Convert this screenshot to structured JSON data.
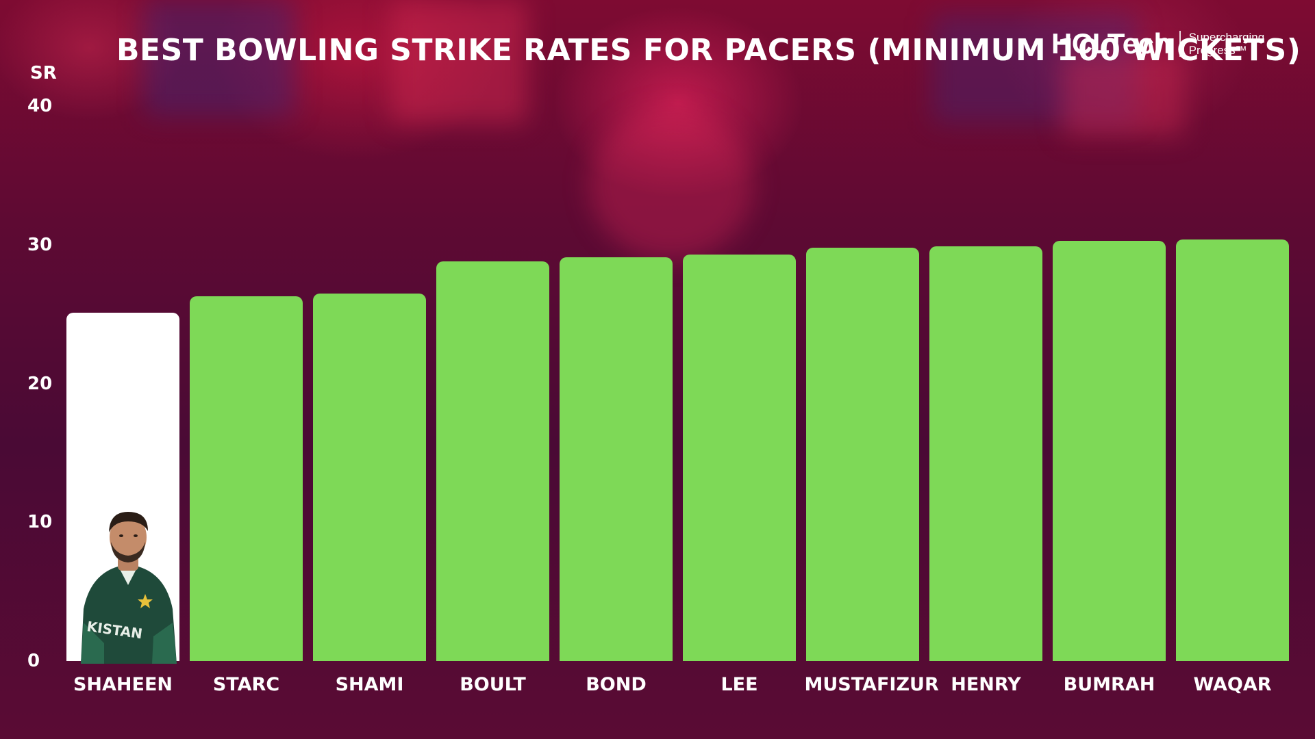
{
  "title": "BEST BOWLING STRIKE RATES FOR PACERS (MINIMUM 100 WICKETS)",
  "logo": {
    "wordmark": "HCLTech",
    "tagline": "Supercharging\nProgress™"
  },
  "colors": {
    "bar": "#7ed957",
    "highlight_bar": "#ffffff",
    "text": "#ffffff",
    "background": "#5e0a33"
  },
  "chart_data": {
    "type": "bar",
    "title": "BEST BOWLING STRIKE RATES FOR PACERS (MINIMUM 100 WICKETS)",
    "xlabel": "",
    "ylabel": "SR",
    "ylim": [
      0,
      40
    ],
    "yticks": [
      "0",
      "10",
      "20",
      "30",
      "40"
    ],
    "grid": false,
    "categories": [
      "SHAHEEN",
      "STARC",
      "SHAMI",
      "BOULT",
      "BOND",
      "LEE",
      "MUSTAFIZUR",
      "HENRY",
      "BUMRAH",
      "WAQAR"
    ],
    "values": [
      25.1,
      26.3,
      26.5,
      28.8,
      29.1,
      29.3,
      29.8,
      29.9,
      30.3,
      30.4
    ],
    "highlight_category": "SHAHEEN"
  }
}
